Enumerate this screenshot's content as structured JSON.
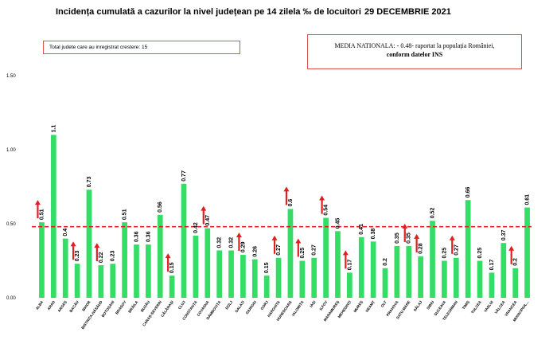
{
  "header": {
    "title": "Incidența cumulată a cazurilor la nivel județean pe 14 zilela ‰ de locuitori",
    "date": "29 DECEMBRIE 2021"
  },
  "info_box": {
    "text": "Total judete care au inregistrat crestere: 15"
  },
  "national_box": {
    "line1": "MEDIA NATIONALA: - 0.48- raportat la populația României,",
    "line2": "conform datelor INS"
  },
  "colors": {
    "bar": "#33dd66",
    "arrow": "#e02020",
    "reference_line": "#e02020",
    "box_border": "#d9534f"
  },
  "chart_data": {
    "type": "bar",
    "title": "Incidența cumulată a cazurilor la nivel județean pe 14 zilela ‰ de locuitori",
    "xlabel": "",
    "ylabel": "",
    "ylim": [
      0,
      1.5
    ],
    "yticks": [
      "0.00",
      "0.50",
      "1.00",
      "1.50"
    ],
    "ytick_values": [
      0,
      0.5,
      1.0,
      1.5
    ],
    "grid": false,
    "reference_line": {
      "value": 0.48,
      "style": "dashed"
    },
    "categories": [
      "ALBA",
      "ARAD",
      "ARGEȘ",
      "BACĂU",
      "BIHOR",
      "BISTRIȚA-NĂSĂUD",
      "BOTOȘANI",
      "BRAȘOV",
      "BRĂILA",
      "BUZĂU",
      "CARAȘ-SEVERIN",
      "CĂLĂRAȘI",
      "CLUJ",
      "CONSTANȚA",
      "COVASNA",
      "DÂMBOVIȚA",
      "DOLJ",
      "GALAȚI",
      "GIURGIU",
      "GORJ",
      "HARGHITA",
      "HUNEDOARA",
      "IALOMIȚA",
      "IAȘI",
      "ILFOV",
      "MARAMUREȘ",
      "MEHEDINȚI",
      "MUREȘ",
      "NEAMȚ",
      "OLT",
      "PRAHOVA",
      "SATU MARE",
      "SĂLAJ",
      "SIBIU",
      "SUCEAVA",
      "TELEORMAN",
      "TIMIȘ",
      "TULCEA",
      "VASLUI",
      "VÂLCEA",
      "VRANCEA",
      "MUNICIPIUL..."
    ],
    "values": [
      0.51,
      1.1,
      0.4,
      0.23,
      0.73,
      0.22,
      0.23,
      0.51,
      0.36,
      0.36,
      0.56,
      0.15,
      0.77,
      0.42,
      0.47,
      0.32,
      0.32,
      0.29,
      0.26,
      0.15,
      0.27,
      0.6,
      0.25,
      0.27,
      0.54,
      0.45,
      0.17,
      0.41,
      0.38,
      0.2,
      0.35,
      0.35,
      0.28,
      0.52,
      0.25,
      0.27,
      0.66,
      0.25,
      0.17,
      0.37,
      0.2,
      0.61
    ],
    "labels": [
      "0.51",
      "1.1",
      "0.4",
      "0.23",
      "0.73",
      "0.22",
      "0.23",
      "0.51",
      "0.36",
      "0.36",
      "0.56",
      "0.15",
      "0.77",
      "0.42",
      "0.47",
      "0.32",
      "0.32",
      "0.29",
      "0.26",
      "0.15",
      "0.27",
      "0.6",
      "0.25",
      "0.27",
      "0.54",
      "0.45",
      "0.17",
      "0.41",
      "0.38",
      "0.2",
      "0.35",
      "0.35",
      "0.28",
      "0.52",
      "0.25",
      "0.27",
      "0.66",
      "0.25",
      "0.17",
      "0.37",
      "0.2",
      "0.61"
    ],
    "increase": [
      true,
      false,
      false,
      true,
      false,
      true,
      false,
      false,
      false,
      false,
      false,
      true,
      false,
      false,
      true,
      false,
      false,
      true,
      false,
      false,
      true,
      true,
      true,
      false,
      true,
      false,
      true,
      false,
      false,
      false,
      false,
      true,
      true,
      false,
      false,
      true,
      false,
      false,
      false,
      false,
      true,
      false
    ]
  }
}
